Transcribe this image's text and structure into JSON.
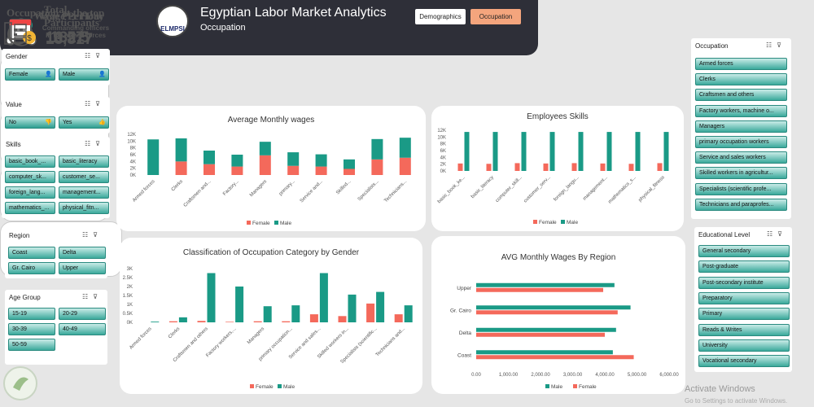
{
  "header": {
    "title": "Egyptian Labor Market Analytics",
    "subtitle": "Occupation",
    "logo_text": "ELMPSI",
    "nav": [
      "Demographics",
      "Occupation"
    ]
  },
  "kpis": {
    "participants": {
      "label1": "Total",
      "label2": "Participants",
      "value": "13,817"
    },
    "wage_hour": {
      "label": "Wage Per Hour",
      "value": "16.57"
    },
    "wage_day": {
      "label": "Wage Per Day",
      "value": "132.5"
    },
    "top_occupation": {
      "label": "Occupation at the top",
      "line1": "Commanding officers",
      "line2": "in the armed forces"
    }
  },
  "slicers": {
    "gender": {
      "title": "Gender",
      "items": [
        "Female",
        "Male"
      ]
    },
    "value": {
      "title": "Value",
      "items": [
        "No",
        "Yes"
      ]
    },
    "skills": {
      "title": "Skills",
      "items": [
        "basic_book_...",
        "basic_literacy",
        "computer_sk...",
        "customer_se...",
        "foreign_lang...",
        "management...",
        "mathematics_...",
        "physical_fitn..."
      ]
    },
    "region": {
      "title": "Region",
      "items": [
        "Coast",
        "Delta",
        "Gr. Cairo",
        "Upper"
      ]
    },
    "age": {
      "title": "Age Group",
      "items": [
        "15-19",
        "20-29",
        "30-39",
        "40-49",
        "50-59"
      ]
    },
    "occupation": {
      "title": "Occupation",
      "items": [
        "Armed forces",
        "Clerks",
        "Craftsmen and others",
        "Factory workers, machine o...",
        "Managers",
        "primary occupation workers",
        "Service and sales workers",
        "Skilled workers in agricultur...",
        "Specialists (scientific profe...",
        "Technicians and paraprofes..."
      ]
    },
    "education": {
      "title": "Educational Level",
      "items": [
        "General secondary",
        "Post-graduate",
        "Post-secondary institute",
        "Preparatory",
        "Primary",
        "Reads & Writes",
        "University",
        "Vocational secondary"
      ]
    }
  },
  "colors": {
    "female": "#f4695b",
    "male": "#1a9a86"
  },
  "chart_data": [
    {
      "type": "bar",
      "stacked": true,
      "title": "Average Monthly wages",
      "categories": [
        "Armed forces",
        "Clerks",
        "Craftsmen and...",
        "Factory...",
        "Managers",
        "primary...",
        "Service and...",
        "Skilled...",
        "Specialists...",
        "Technicians..."
      ],
      "yticks": [
        "0K",
        "2K",
        "4K",
        "6K",
        "8K",
        "10K",
        "12K"
      ],
      "ylim": [
        0,
        12000
      ],
      "series": [
        {
          "name": "Female",
          "values": [
            0,
            4000,
            3200,
            2500,
            5800,
            2700,
            2500,
            1800,
            4600,
            5100
          ]
        },
        {
          "name": "Male",
          "values": [
            10500,
            6800,
            4000,
            3500,
            4000,
            4000,
            3600,
            2800,
            6000,
            5900
          ]
        }
      ],
      "legend": [
        "Female",
        "Male"
      ]
    },
    {
      "type": "bar",
      "title": "Employees Skills",
      "categories": [
        "basic_book_ke...",
        "basic_literacy",
        "computer_skill...",
        "customer_serv...",
        "foreign_langu...",
        "management...",
        "mathematics_s...",
        "physical_fitness"
      ],
      "yticks": [
        "0K",
        "2K",
        "4K",
        "6K",
        "8K",
        "10K",
        "12K"
      ],
      "ylim": [
        0,
        12000
      ],
      "series": [
        {
          "name": "Female",
          "values": [
            2200,
            2100,
            2300,
            2200,
            2300,
            2200,
            2100,
            2300
          ]
        },
        {
          "name": "Male",
          "values": [
            11500,
            11500,
            11500,
            11500,
            11500,
            11500,
            11500,
            11500
          ]
        }
      ],
      "legend": [
        "Female",
        "Male"
      ]
    },
    {
      "type": "bar",
      "title": "Classification of Occupation Category by Gender",
      "categories": [
        "Armed forces",
        "Clerks",
        "Craftsmen and others",
        "Factory workers,...",
        "Managers",
        "primary occupation...",
        "Service and sales...",
        "Skilled workers in...",
        "Specialists (scientific...",
        "Technicians and..."
      ],
      "yticks": [
        "0K",
        "0.5K",
        "1K",
        "1.5K",
        "2K",
        "2.5K",
        "3K"
      ],
      "ylim": [
        0,
        3000
      ],
      "series": [
        {
          "name": "Female",
          "values": [
            0,
            60,
            80,
            30,
            60,
            60,
            450,
            350,
            1050,
            450
          ]
        },
        {
          "name": "Male",
          "values": [
            40,
            280,
            2750,
            2000,
            900,
            950,
            2750,
            1550,
            1700,
            950
          ]
        }
      ],
      "legend": [
        "Female",
        "Male"
      ]
    },
    {
      "type": "bar",
      "orientation": "horizontal",
      "title": "AVG Monthly Wages By Region",
      "categories": [
        "Upper",
        "Gr. Cairo",
        "Delta",
        "Coast"
      ],
      "xticks": [
        "0.00",
        "1,000.00",
        "2,000.00",
        "3,000.00",
        "4,000.00",
        "5,000.00",
        "6,000.00"
      ],
      "xlim": [
        0,
        6000
      ],
      "series": [
        {
          "name": "Male",
          "values": [
            4300,
            4800,
            4350,
            4250
          ]
        },
        {
          "name": "Female",
          "values": [
            3950,
            4400,
            4000,
            4900
          ]
        }
      ],
      "legend": [
        "Male",
        "Female"
      ]
    }
  ],
  "watermark": {
    "line1": "Activate Windows",
    "line2": "Go to Settings to activate Windows."
  }
}
